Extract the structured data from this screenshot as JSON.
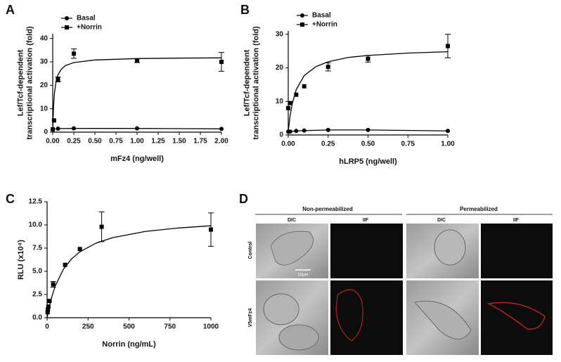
{
  "chart_data": [
    {
      "type": "scatter",
      "panel": "A",
      "xlabel": "mFz4 (ng/well)",
      "ylabel": [
        "Lef/Tcf-dependent",
        "transcriptional activation (fold)"
      ],
      "xlim": [
        0,
        2
      ],
      "ylim": [
        0,
        42
      ],
      "xticks": [
        {
          "value": 0,
          "label": "0.00"
        },
        0.25,
        {
          "value": 0.5,
          "label": "0.50"
        },
        0.75,
        {
          "value": 1,
          "label": "1.00"
        },
        1.25,
        {
          "value": 1.5,
          "label": "1.50"
        },
        1.75,
        {
          "value": 2,
          "label": "2.00"
        }
      ],
      "yticks": [
        0,
        10,
        20,
        30,
        40
      ],
      "legend": "upper left",
      "series": [
        {
          "name": "Basal",
          "color": "#000000",
          "marker": "circle",
          "mode": "lines+markers",
          "x": [
            0,
            0.0625,
            0.25,
            1,
            2
          ],
          "values": [
            1.2,
            1.5,
            1.6,
            1.6,
            1.4
          ],
          "errors": [
            null,
            null,
            null,
            null,
            null
          ]
        },
        {
          "name": "+Norrin",
          "color": "#000000",
          "marker": "square",
          "mode": "markers",
          "x": [
            0,
            0.0156,
            0.0625,
            0.25,
            1,
            2
          ],
          "values": [
            1.2,
            5,
            22.5,
            33.5,
            30.5,
            30
          ],
          "errors": [
            null,
            null,
            1,
            2,
            0.8,
            4
          ]
        },
        {
          "color": "#000000",
          "mode": "lines",
          "x": [
            0,
            0.01,
            0.02,
            0.04,
            0.06,
            0.1,
            0.15,
            0.25,
            0.5,
            1,
            1.5,
            2
          ],
          "values": [
            1,
            11.3,
            16.5,
            21.7,
            24.3,
            26.8,
            28.4,
            29.7,
            30.8,
            31.4,
            31.6,
            31.7
          ]
        }
      ]
    },
    {
      "type": "scatter",
      "panel": "B",
      "xlabel": "hLRP5 (ng/well)",
      "ylabel": [
        "Lef/Tcf-dependent",
        "transcriptional activation (fold)"
      ],
      "xlim": [
        0,
        1
      ],
      "ylim": [
        0,
        31
      ],
      "xticks": [
        {
          "value": 0,
          "label": "0.00"
        },
        0.25,
        {
          "value": 0.5,
          "label": "0.50"
        },
        0.75,
        {
          "value": 1,
          "label": "1.00"
        }
      ],
      "yticks": [
        0,
        10,
        20,
        30
      ],
      "legend": "upper left",
      "series": [
        {
          "name": "Basal",
          "color": "#000000",
          "marker": "circle",
          "mode": "lines+markers",
          "x": [
            0,
            0.0125,
            0.05,
            0.1,
            0.25,
            0.5,
            1
          ],
          "values": [
            1,
            1,
            1.2,
            1.3,
            1.5,
            1.5,
            1.2
          ],
          "errors": [
            null,
            null,
            null,
            null,
            null,
            null,
            null
          ]
        },
        {
          "name": "+Norrin",
          "color": "#000000",
          "marker": "square",
          "mode": "markers",
          "x": [
            0,
            0.0125,
            0.05,
            0.1,
            0.25,
            0.5,
            1
          ],
          "values": [
            8,
            9.5,
            12,
            14.5,
            20.3,
            22.7,
            26.5
          ],
          "errors": [
            null,
            null,
            null,
            null,
            1.2,
            1,
            3.5
          ]
        },
        {
          "color": "#000000",
          "mode": "lines",
          "x": [
            0,
            0.01,
            0.025,
            0.05,
            0.1,
            0.175,
            0.25,
            0.375,
            0.5,
            0.75,
            1
          ],
          "values": [
            1,
            5.2,
            9.3,
            13.5,
            17.7,
            20.4,
            21.8,
            23.1,
            23.7,
            24.4,
            24.8
          ]
        }
      ]
    },
    {
      "type": "scatter",
      "panel": "C",
      "xlabel": "Norrin (ng/mL)",
      "ylabel": [
        "RLU (x10⁴)"
      ],
      "xlim": [
        0,
        1000
      ],
      "ylim": [
        0,
        12.5
      ],
      "xticks": [
        0,
        250,
        500,
        750,
        1000
      ],
      "yticks": [
        {
          "value": 0,
          "label": "0.0"
        },
        2.5,
        {
          "value": 5,
          "label": "5.0"
        },
        7.5,
        {
          "value": 10,
          "label": "10.0"
        },
        12.5
      ],
      "series": [
        {
          "color": "#000000",
          "marker": "square",
          "mode": "markers",
          "x": [
            3,
            5,
            8,
            15,
            37,
            110,
            200,
            333,
            1000
          ],
          "values": [
            0.6,
            0.9,
            1.2,
            1.8,
            3.6,
            5.7,
            7.4,
            9.8,
            9.5
          ],
          "errors": [
            null,
            null,
            null,
            null,
            0.3,
            null,
            null,
            1.6,
            1.8
          ]
        },
        {
          "color": "#000000",
          "mode": "lines",
          "x": [
            0,
            10,
            25,
            50,
            100,
            150,
            200,
            300,
            400,
            600,
            800,
            1000
          ],
          "values": [
            0,
            0.92,
            2.03,
            3.44,
            5.24,
            6.35,
            7.1,
            8.05,
            8.63,
            9.3,
            9.67,
            9.91
          ]
        }
      ]
    }
  ],
  "panel_d": {
    "panel": "D",
    "groups": [
      "Non-permeabilized",
      "Permeabilized"
    ],
    "columns": [
      "DIC",
      "IIF",
      "DIC",
      "IIF"
    ],
    "rows": [
      "Control",
      "V5mFz4"
    ],
    "scale_bar": "10μm"
  }
}
